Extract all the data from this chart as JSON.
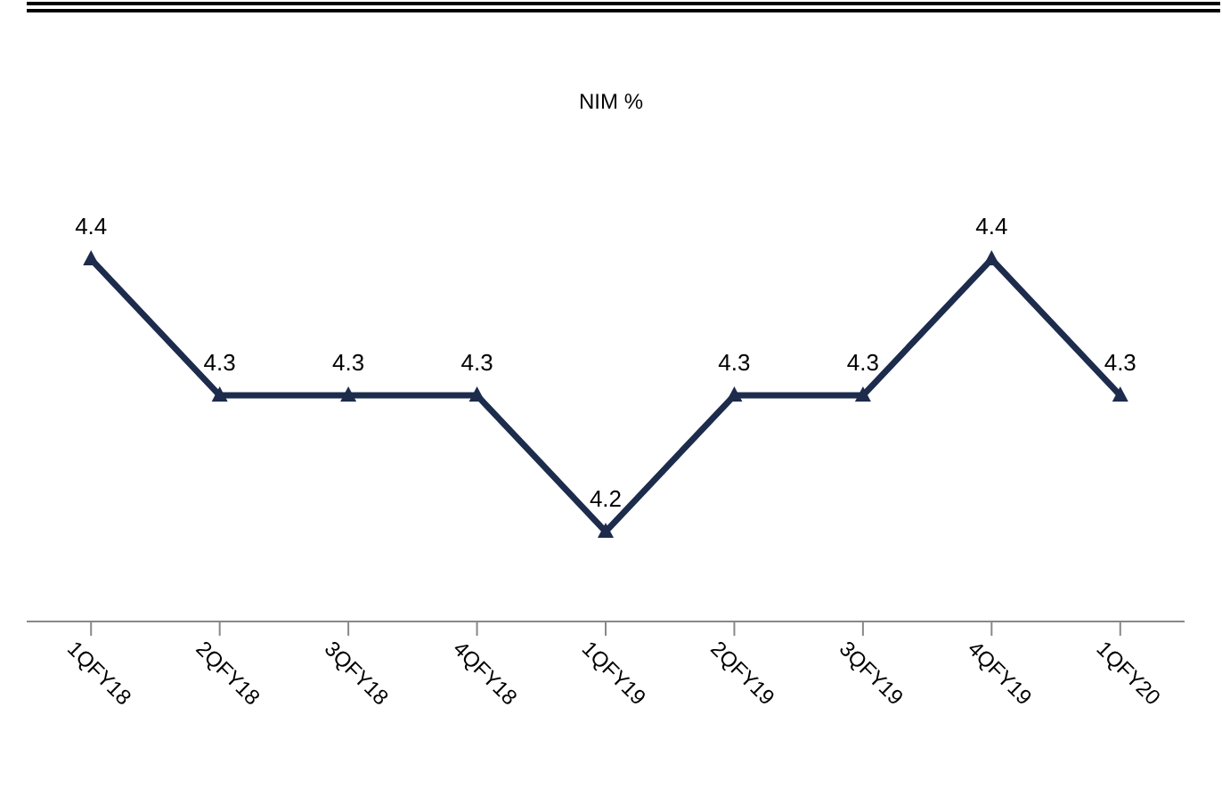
{
  "chart_data": {
    "type": "line",
    "title": "NIM %",
    "categories": [
      "1QFY18",
      "2QFY18",
      "3QFY18",
      "4QFY18",
      "1QFY19",
      "2QFY19",
      "3QFY19",
      "4QFY19",
      "1QFY20"
    ],
    "series": [
      {
        "color": "#1d2c4c",
        "values": [
          4.4,
          4.3,
          4.3,
          4.3,
          4.2,
          4.3,
          4.3,
          4.4,
          4.3
        ]
      }
    ],
    "tick_labels": "x",
    "data_labels": true,
    "marker": "triangle",
    "line_style": "solid"
  }
}
